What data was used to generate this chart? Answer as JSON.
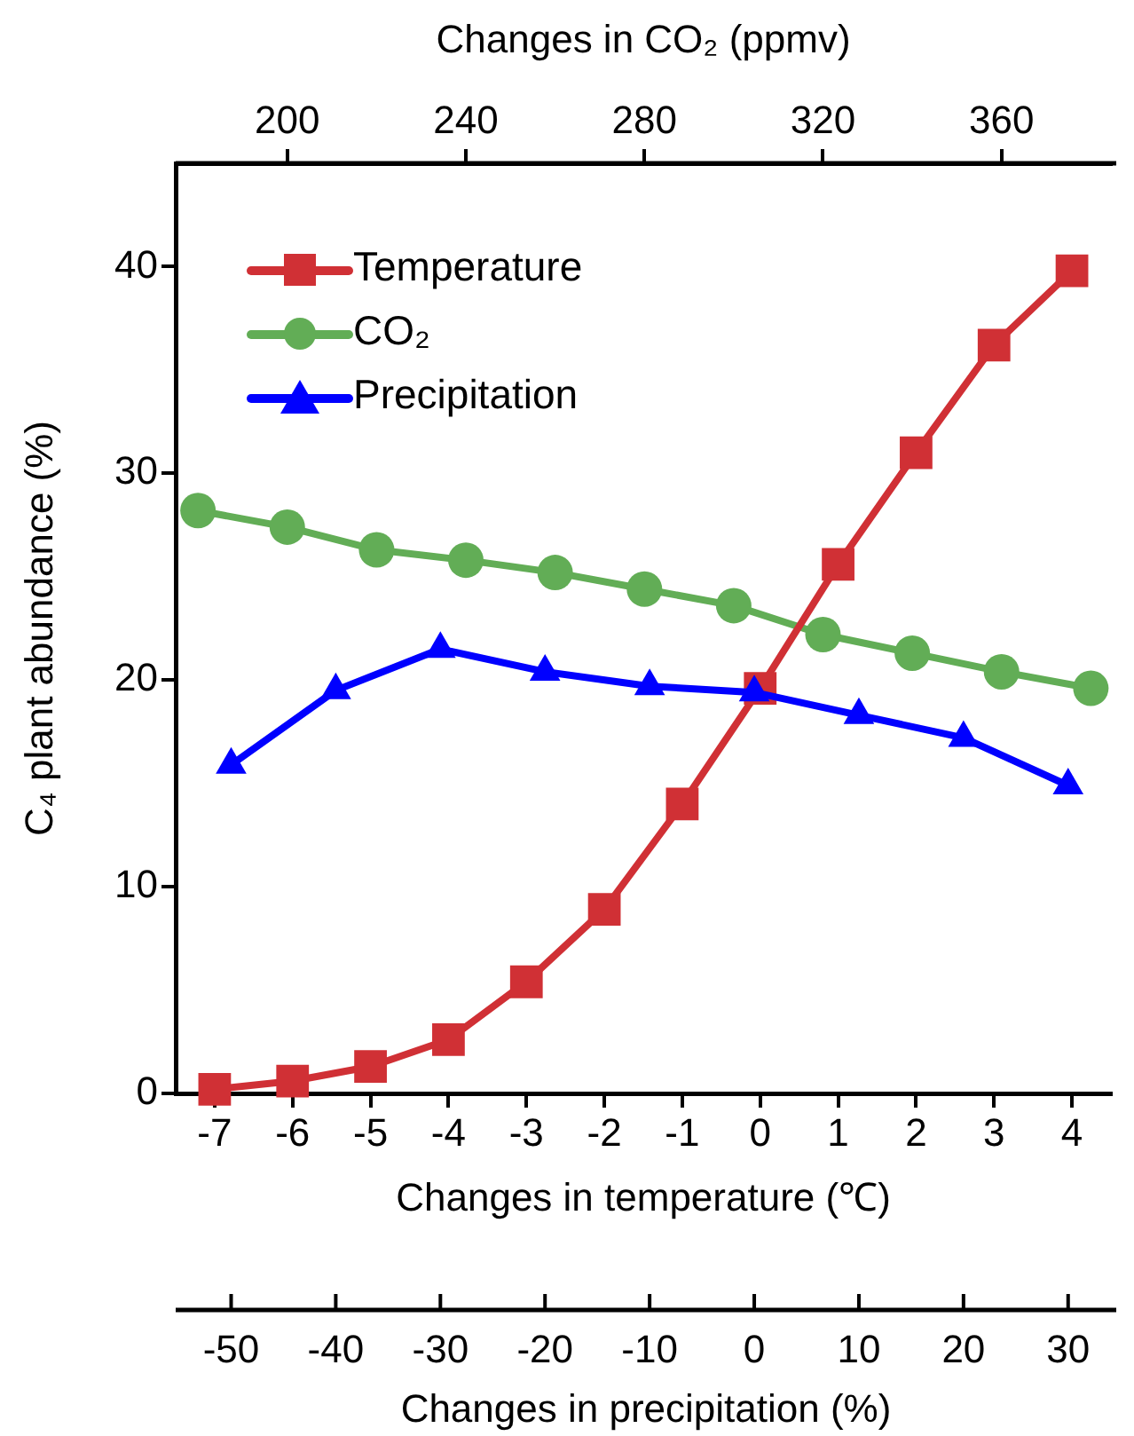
{
  "chart_data": [
    {
      "type": "line",
      "xlabel": "Changes in temperature (℃)",
      "x2label": "Changes in CO₂ (ppmv)",
      "ylabel": "C₄ plant abundance (%)",
      "xlim": [
        -7.5,
        4.5
      ],
      "xticks": [
        -7,
        -6,
        -5,
        -4,
        -3,
        -2,
        -1,
        0,
        1,
        2,
        3,
        4
      ],
      "x2lim": [
        175,
        384.5
      ],
      "x2ticks": [
        200,
        240,
        280,
        320,
        360
      ],
      "ylim": [
        0,
        45
      ],
      "yticks": [
        0,
        10,
        20,
        30,
        40
      ],
      "legend": "top left",
      "line_style": "solid",
      "series": [
        {
          "name": "Temperature",
          "color": "#d03035",
          "marker": "square",
          "x": [
            -7,
            -6,
            -5,
            -4,
            -3,
            -2,
            -1,
            0,
            1,
            2,
            3,
            4
          ],
          "values": [
            0.2,
            0.6,
            1.3,
            2.6,
            5.4,
            8.9,
            14.0,
            19.6,
            25.6,
            31.0,
            36.2,
            39.8
          ]
        },
        {
          "name": "CO₂",
          "color": "#62ad56",
          "marker": "circle",
          "axis": "x2",
          "x": [
            180,
            200,
            220,
            240,
            260,
            280,
            300,
            320,
            340,
            360,
            380
          ],
          "values": [
            28.2,
            27.4,
            26.3,
            25.8,
            25.2,
            24.4,
            23.6,
            22.2,
            21.3,
            20.4,
            19.6
          ]
        }
      ]
    },
    {
      "type": "line",
      "xlabel": "Changes in precipitation (%)",
      "xlim": [
        -55.3,
        34.6
      ],
      "xticks": [
        -50,
        -40,
        -30,
        -20,
        -10,
        0,
        10,
        20,
        30
      ],
      "ylim": [
        0,
        45
      ],
      "tick_labels": "x",
      "legend": "top left",
      "line_style": "solid",
      "marker": "triangle",
      "series": [
        {
          "name": "Precipitation",
          "color": "#0000ff",
          "x": [
            -50,
            -40,
            -30,
            -20,
            -10,
            0,
            10,
            20,
            30
          ],
          "values": [
            15.9,
            19.5,
            21.5,
            20.4,
            19.7,
            19.4,
            18.3,
            17.2,
            14.9
          ]
        }
      ]
    }
  ]
}
